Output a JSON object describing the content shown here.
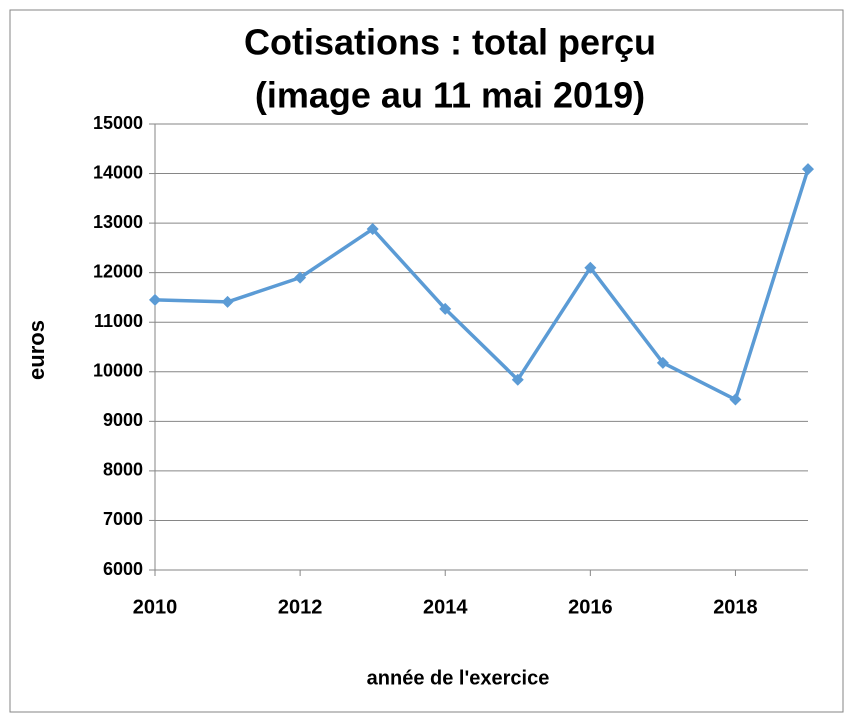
{
  "chart_data": {
    "type": "line",
    "title": [
      "Cotisations : total perçu",
      "(image au 11 mai 2019)"
    ],
    "x_label": "année de l'exercice",
    "y_label": "euros",
    "x": [
      2010,
      2011,
      2012,
      2013,
      2014,
      2015,
      2016,
      2017,
      2018,
      2019
    ],
    "series": [
      {
        "name": "total perçu",
        "color": "#5b9bd5",
        "values": [
          11450,
          11410,
          11900,
          12880,
          11270,
          9840,
          12100,
          10180,
          9440,
          14090
        ]
      }
    ],
    "xlim": [
      2010,
      2019
    ],
    "xticks": [
      2010,
      2012,
      2014,
      2016,
      2018
    ],
    "ylim": [
      6000,
      15000
    ],
    "yticks": [
      6000,
      7000,
      8000,
      9000,
      10000,
      11000,
      12000,
      13000,
      14000,
      15000
    ],
    "grid": true
  }
}
